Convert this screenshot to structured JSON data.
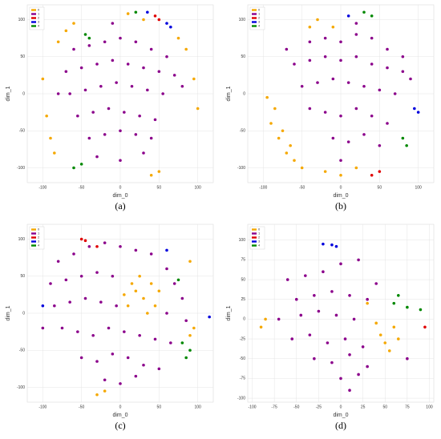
{
  "chart_data": [
    {
      "type": "scatter",
      "caption": "(a)",
      "xlabel": "dim_0",
      "ylabel": "dim_1",
      "xlim": [
        -120,
        120
      ],
      "ylim": [
        -120,
        120
      ],
      "xticks": [
        -100,
        -50,
        0,
        50,
        100
      ],
      "yticks": [
        -100,
        -50,
        0,
        50,
        100
      ],
      "grid": true,
      "legend": "upper left",
      "series": [
        {
          "name": "0",
          "color": "#f5a800",
          "x": [
            -60,
            -70,
            -80,
            -100,
            -95,
            -90,
            85,
            95,
            100,
            40,
            50,
            10,
            30,
            75,
            -85
          ],
          "y": [
            95,
            85,
            70,
            20,
            -30,
            -60,
            60,
            20,
            -20,
            -110,
            -105,
            108,
            100,
            75,
            -80
          ]
        },
        {
          "name": "1",
          "color": "#8b008b",
          "x": [
            -60,
            -40,
            -20,
            0,
            20,
            40,
            60,
            -70,
            -50,
            -30,
            -10,
            10,
            30,
            50,
            70,
            -65,
            -45,
            -25,
            -5,
            15,
            35,
            55,
            -55,
            -35,
            -15,
            5,
            25,
            45,
            -40,
            -20,
            0,
            20,
            40,
            -30,
            0,
            30,
            80,
            -80,
            -10
          ],
          "y": [
            60,
            65,
            70,
            75,
            70,
            60,
            50,
            30,
            35,
            40,
            45,
            40,
            35,
            30,
            25,
            0,
            5,
            10,
            15,
            10,
            5,
            0,
            -30,
            -25,
            -20,
            -25,
            -30,
            -35,
            -60,
            -55,
            -50,
            -55,
            -60,
            -85,
            -90,
            -80,
            10,
            0,
            95
          ]
        },
        {
          "name": "2",
          "color": "#e00000",
          "x": [
            45,
            50
          ],
          "y": [
            105,
            100
          ]
        },
        {
          "name": "3",
          "color": "#0000dd",
          "x": [
            60,
            65,
            35
          ],
          "y": [
            95,
            90,
            110
          ]
        },
        {
          "name": "4",
          "color": "#008800",
          "x": [
            -45,
            -40,
            -60,
            20,
            -50
          ],
          "y": [
            80,
            75,
            -100,
            110,
            -95
          ]
        }
      ]
    },
    {
      "type": "scatter",
      "caption": "(b)",
      "xlabel": "dim_0",
      "ylabel": "dim_1",
      "xlim": [
        -120,
        120
      ],
      "ylim": [
        -120,
        120
      ],
      "xticks": [
        -100,
        -50,
        0,
        50,
        100
      ],
      "yticks": [
        -100,
        -50,
        0,
        50,
        100
      ],
      "grid": true,
      "legend": "upper left",
      "series": [
        {
          "name": "0",
          "color": "#f5a800",
          "x": [
            -90,
            -80,
            -70,
            -60,
            -85,
            -75,
            -50,
            -20,
            0,
            20,
            -40,
            -30,
            -10,
            -95,
            -65
          ],
          "y": [
            -40,
            -60,
            -80,
            -90,
            -20,
            -50,
            -100,
            -105,
            -110,
            -100,
            90,
            100,
            90,
            -5,
            -70
          ]
        },
        {
          "name": "1",
          "color": "#8b008b",
          "x": [
            -40,
            -20,
            0,
            20,
            40,
            60,
            -60,
            -40,
            -20,
            0,
            20,
            40,
            60,
            80,
            -50,
            -30,
            -10,
            10,
            30,
            50,
            70,
            -40,
            -20,
            0,
            20,
            40,
            60,
            -10,
            10,
            30,
            50,
            0,
            80,
            -70,
            20,
            90
          ],
          "y": [
            70,
            75,
            70,
            80,
            75,
            60,
            40,
            45,
            50,
            45,
            50,
            40,
            35,
            30,
            10,
            15,
            20,
            15,
            10,
            5,
            0,
            -20,
            -25,
            -30,
            -20,
            -30,
            -40,
            -60,
            -65,
            -55,
            -70,
            -90,
            50,
            60,
            95,
            20
          ]
        },
        {
          "name": "2",
          "color": "#e00000",
          "x": [
            40,
            50
          ],
          "y": [
            -110,
            -105
          ]
        },
        {
          "name": "3",
          "color": "#0000dd",
          "x": [
            10,
            95,
            100
          ],
          "y": [
            105,
            -20,
            -25
          ]
        },
        {
          "name": "4",
          "color": "#008800",
          "x": [
            30,
            40,
            80,
            85
          ],
          "y": [
            110,
            105,
            -60,
            -70
          ]
        }
      ]
    },
    {
      "type": "scatter",
      "caption": "(c)",
      "xlabel": "dim_0",
      "ylabel": "dim_1",
      "xlim": [
        -120,
        120
      ],
      "ylim": [
        -120,
        120
      ],
      "xticks": [
        -100,
        -50,
        0,
        50,
        100
      ],
      "yticks": [
        -100,
        -50,
        0,
        50,
        100
      ],
      "grid": true,
      "legend": "upper left",
      "series": [
        {
          "name": "0",
          "color": "#f5a800",
          "x": [
            20,
            30,
            40,
            10,
            35,
            25,
            45,
            15,
            90,
            95,
            90,
            -30,
            -20,
            50,
            5
          ],
          "y": [
            30,
            20,
            40,
            10,
            0,
            50,
            10,
            40,
            70,
            -20,
            -30,
            -110,
            -105,
            30,
            25
          ]
        },
        {
          "name": "1",
          "color": "#8b008b",
          "x": [
            -80,
            -60,
            -40,
            -20,
            0,
            20,
            40,
            60,
            -90,
            -70,
            -50,
            -30,
            -10,
            70,
            80,
            -85,
            -65,
            -45,
            -25,
            -5,
            60,
            85,
            -75,
            -55,
            -35,
            -15,
            5,
            25,
            45,
            65,
            -50,
            -30,
            -10,
            10,
            30,
            50,
            -20,
            0,
            20,
            -100
          ],
          "y": [
            70,
            80,
            90,
            95,
            90,
            85,
            80,
            60,
            40,
            45,
            50,
            55,
            50,
            40,
            20,
            10,
            15,
            20,
            15,
            10,
            0,
            -10,
            -20,
            -25,
            -30,
            -20,
            -25,
            -30,
            -35,
            -40,
            -60,
            -65,
            -55,
            -60,
            -70,
            -75,
            -90,
            -95,
            -85,
            -20
          ]
        },
        {
          "name": "2",
          "color": "#e00000",
          "x": [
            -50,
            -45,
            -30
          ],
          "y": [
            100,
            98,
            90
          ]
        },
        {
          "name": "3",
          "color": "#0000dd",
          "x": [
            60,
            -100,
            115
          ],
          "y": [
            85,
            10,
            -5
          ]
        },
        {
          "name": "4",
          "color": "#008800",
          "x": [
            85,
            90,
            75,
            80
          ],
          "y": [
            -60,
            -50,
            45,
            -40
          ]
        }
      ]
    },
    {
      "type": "scatter",
      "caption": "(d)",
      "xlabel": "dim_0",
      "ylabel": "dim_1",
      "xlim": [
        -105,
        105
      ],
      "ylim": [
        -105,
        120
      ],
      "xticks": [
        -100,
        -75,
        -50,
        -25,
        0,
        25,
        50,
        75,
        100
      ],
      "yticks": [
        -100,
        -75,
        -50,
        -25,
        0,
        25,
        50,
        75,
        100
      ],
      "grid": true,
      "legend": "upper left",
      "series": [
        {
          "name": "0",
          "color": "#f5a800",
          "x": [
            -90,
            -85,
            45,
            50,
            60,
            55,
            65,
            30,
            40
          ],
          "y": [
            -10,
            0,
            -20,
            -30,
            -10,
            -40,
            -25,
            20,
            -5
          ]
        },
        {
          "name": "1",
          "color": "#8b008b",
          "x": [
            -60,
            -40,
            -20,
            0,
            20,
            40,
            -50,
            -30,
            -10,
            10,
            30,
            -70,
            -45,
            -25,
            -5,
            15,
            -55,
            -35,
            -15,
            5,
            25,
            -30,
            -10,
            10,
            30,
            0,
            20,
            10,
            75
          ],
          "y": [
            50,
            55,
            60,
            70,
            75,
            45,
            25,
            30,
            35,
            30,
            25,
            0,
            5,
            10,
            5,
            0,
            -25,
            -20,
            -30,
            -25,
            -35,
            -50,
            -55,
            -45,
            -60,
            -75,
            -70,
            -90,
            -50
          ]
        },
        {
          "name": "2",
          "color": "#e00000",
          "x": [
            95
          ],
          "y": [
            -10
          ]
        },
        {
          "name": "3",
          "color": "#0000dd",
          "x": [
            -20,
            -10,
            -5
          ],
          "y": [
            95,
            94,
            92
          ]
        },
        {
          "name": "4",
          "color": "#008800",
          "x": [
            60,
            75,
            65,
            90
          ],
          "y": [
            20,
            15,
            30,
            12
          ]
        }
      ]
    }
  ]
}
